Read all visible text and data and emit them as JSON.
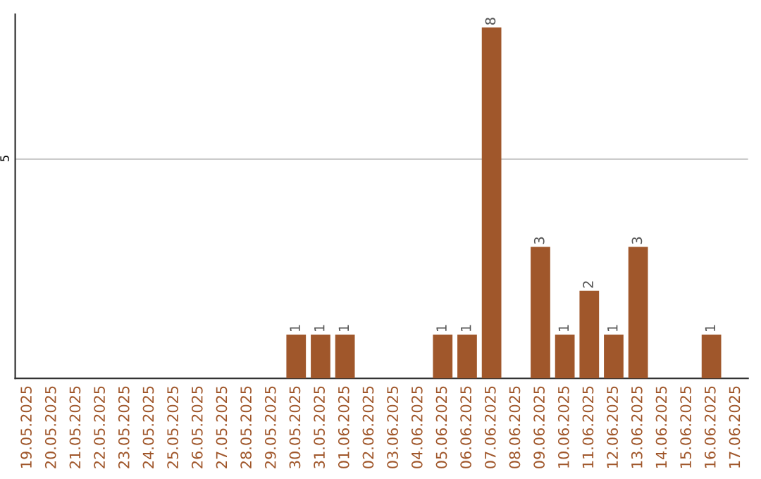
{
  "chart_data": {
    "type": "bar",
    "categories": [
      "19.05.2025",
      "20.05.2025",
      "21.05.2025",
      "22.05.2025",
      "23.05.2025",
      "24.05.2025",
      "25.05.2025",
      "26.05.2025",
      "27.05.2025",
      "28.05.2025",
      "29.05.2025",
      "30.05.2025",
      "31.05.2025",
      "01.06.2025",
      "02.06.2025",
      "03.06.2025",
      "04.06.2025",
      "05.06.2025",
      "06.06.2025",
      "07.06.2025",
      "08.06.2025",
      "09.06.2025",
      "10.06.2025",
      "11.06.2025",
      "12.06.2025",
      "13.06.2025",
      "14.06.2025",
      "15.06.2025",
      "16.06.2025",
      "17.06.2025"
    ],
    "values": [
      0,
      0,
      0,
      0,
      0,
      0,
      0,
      0,
      0,
      0,
      0,
      1,
      1,
      1,
      0,
      0,
      0,
      1,
      1,
      8,
      0,
      3,
      1,
      2,
      1,
      3,
      0,
      0,
      1,
      0
    ],
    "value_labels": [
      null,
      null,
      null,
      null,
      null,
      null,
      null,
      null,
      null,
      null,
      null,
      "1",
      "1",
      "1",
      null,
      null,
      null,
      "1",
      "1",
      "8",
      null,
      "3",
      "1",
      "2",
      "1",
      "3",
      null,
      null,
      "1",
      null
    ],
    "color": "#a0572b",
    "ylim": [
      0,
      8.3
    ],
    "yticks": [
      5
    ],
    "grid": "y"
  }
}
